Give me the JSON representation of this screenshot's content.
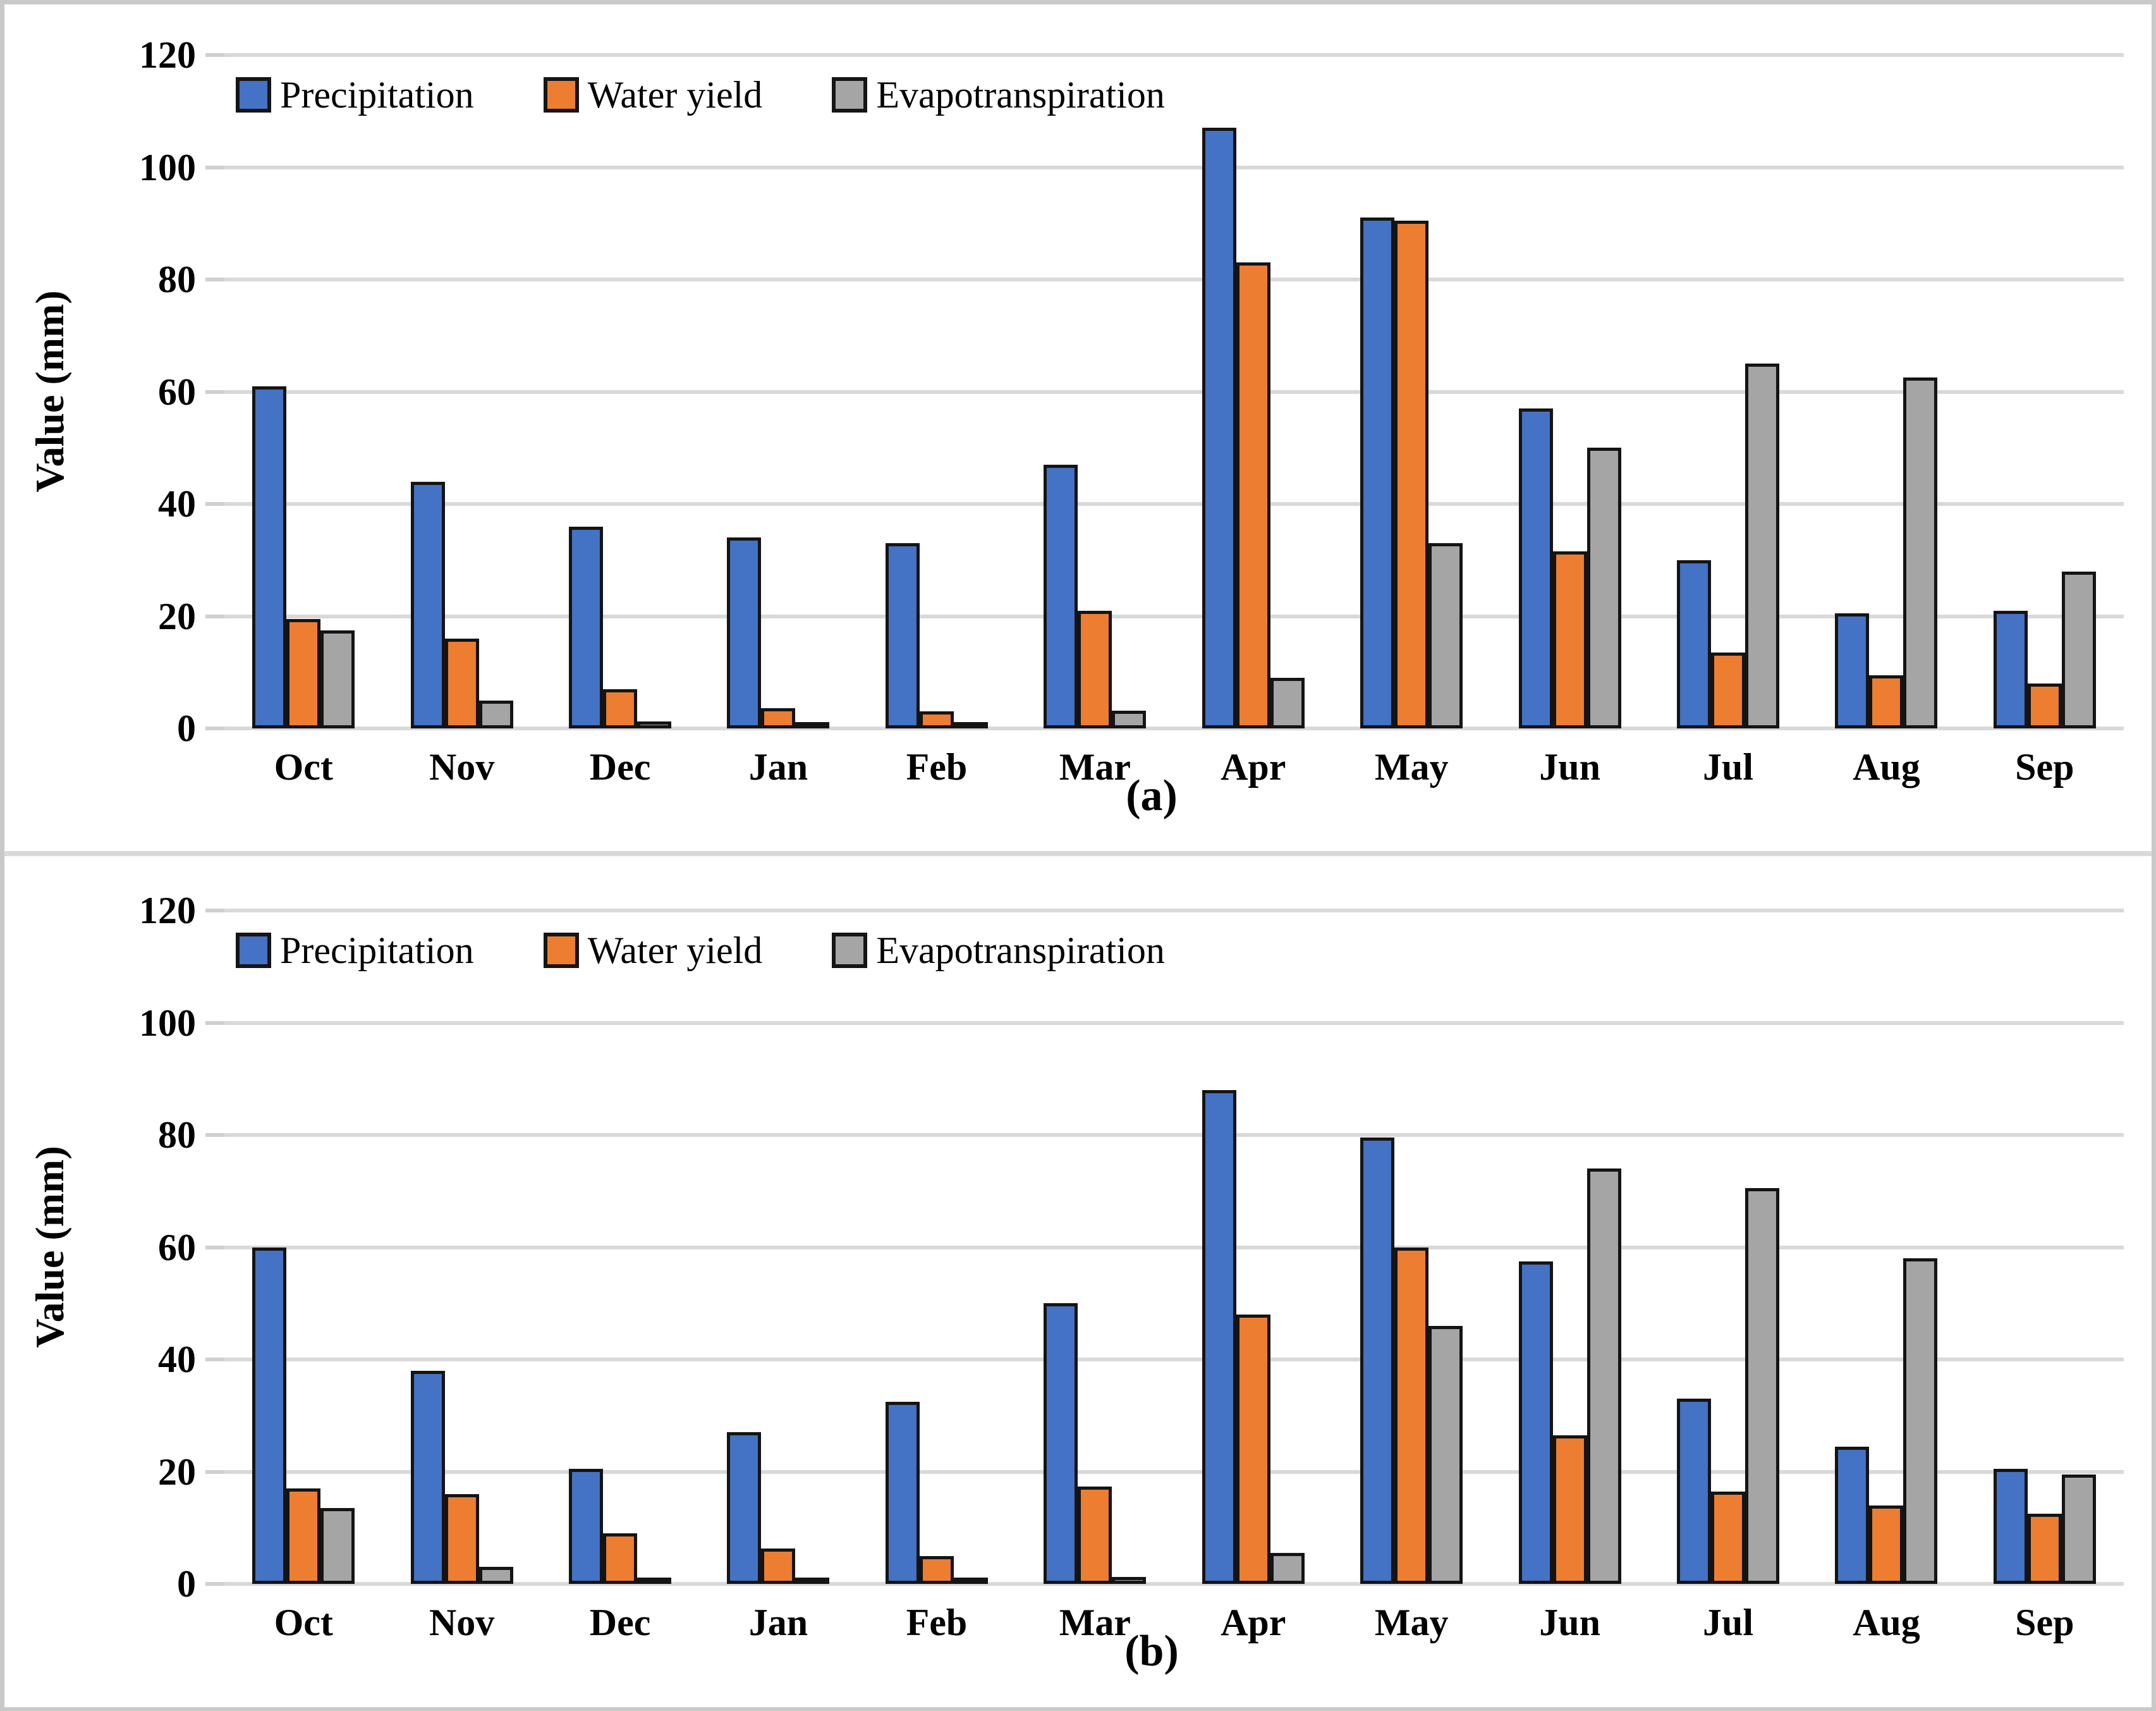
{
  "figure": {
    "background": "#FFFFFF",
    "frame_color": "#C9C9C9",
    "gridline_color": "#D9D9D9",
    "bar_outline_color": "#141414"
  },
  "chart_data": [
    {
      "panel": "a",
      "panel_label": "(a)",
      "type": "bar",
      "ylabel": "Value (mm)",
      "ylim": [
        0,
        120
      ],
      "ytick_step": 20,
      "grid": true,
      "legend_position": "top-left",
      "categories": [
        "Oct",
        "Nov",
        "Dec",
        "Jan",
        "Feb",
        "Mar",
        "Apr",
        "May",
        "Jun",
        "Jul",
        "Aug",
        "Sep"
      ],
      "series": [
        {
          "name": "Precipitation",
          "color": "#4472C4",
          "values": [
            61,
            44,
            36,
            34,
            33,
            47,
            107,
            91,
            57,
            30,
            20.5,
            21
          ]
        },
        {
          "name": "Water yield",
          "color": "#ED7D31",
          "values": [
            19.5,
            16,
            7,
            3.6,
            3,
            21,
            83,
            90.5,
            31.5,
            13.5,
            9.5,
            8
          ]
        },
        {
          "name": "Evapotranspiration",
          "color": "#A5A5A5",
          "values": [
            17.5,
            5,
            1.2,
            0.7,
            0.7,
            3.2,
            9,
            33,
            50,
            65,
            62.5,
            28
          ]
        }
      ]
    },
    {
      "panel": "b",
      "panel_label": "(b)",
      "type": "bar",
      "ylabel": "Value (mm)",
      "ylim": [
        0,
        120
      ],
      "ytick_step": 20,
      "grid": true,
      "legend_position": "top-left",
      "categories": [
        "Oct",
        "Nov",
        "Dec",
        "Jan",
        "Feb",
        "Mar",
        "Apr",
        "May",
        "Jun",
        "Jul",
        "Aug",
        "Sep"
      ],
      "series": [
        {
          "name": "Precipitation",
          "color": "#4472C4",
          "values": [
            60,
            38,
            20.5,
            27,
            32.5,
            50,
            88,
            79.5,
            57.5,
            33,
            24.5,
            20.5
          ]
        },
        {
          "name": "Water yield",
          "color": "#ED7D31",
          "values": [
            17,
            16,
            9,
            6.3,
            5,
            17.3,
            48,
            60,
            26.5,
            16.5,
            14,
            12.5
          ]
        },
        {
          "name": "Evapotranspiration",
          "color": "#A5A5A5",
          "values": [
            13.5,
            3,
            1,
            0.7,
            0.7,
            1.2,
            5.5,
            46,
            74,
            70.5,
            58,
            19.5
          ]
        }
      ]
    }
  ]
}
